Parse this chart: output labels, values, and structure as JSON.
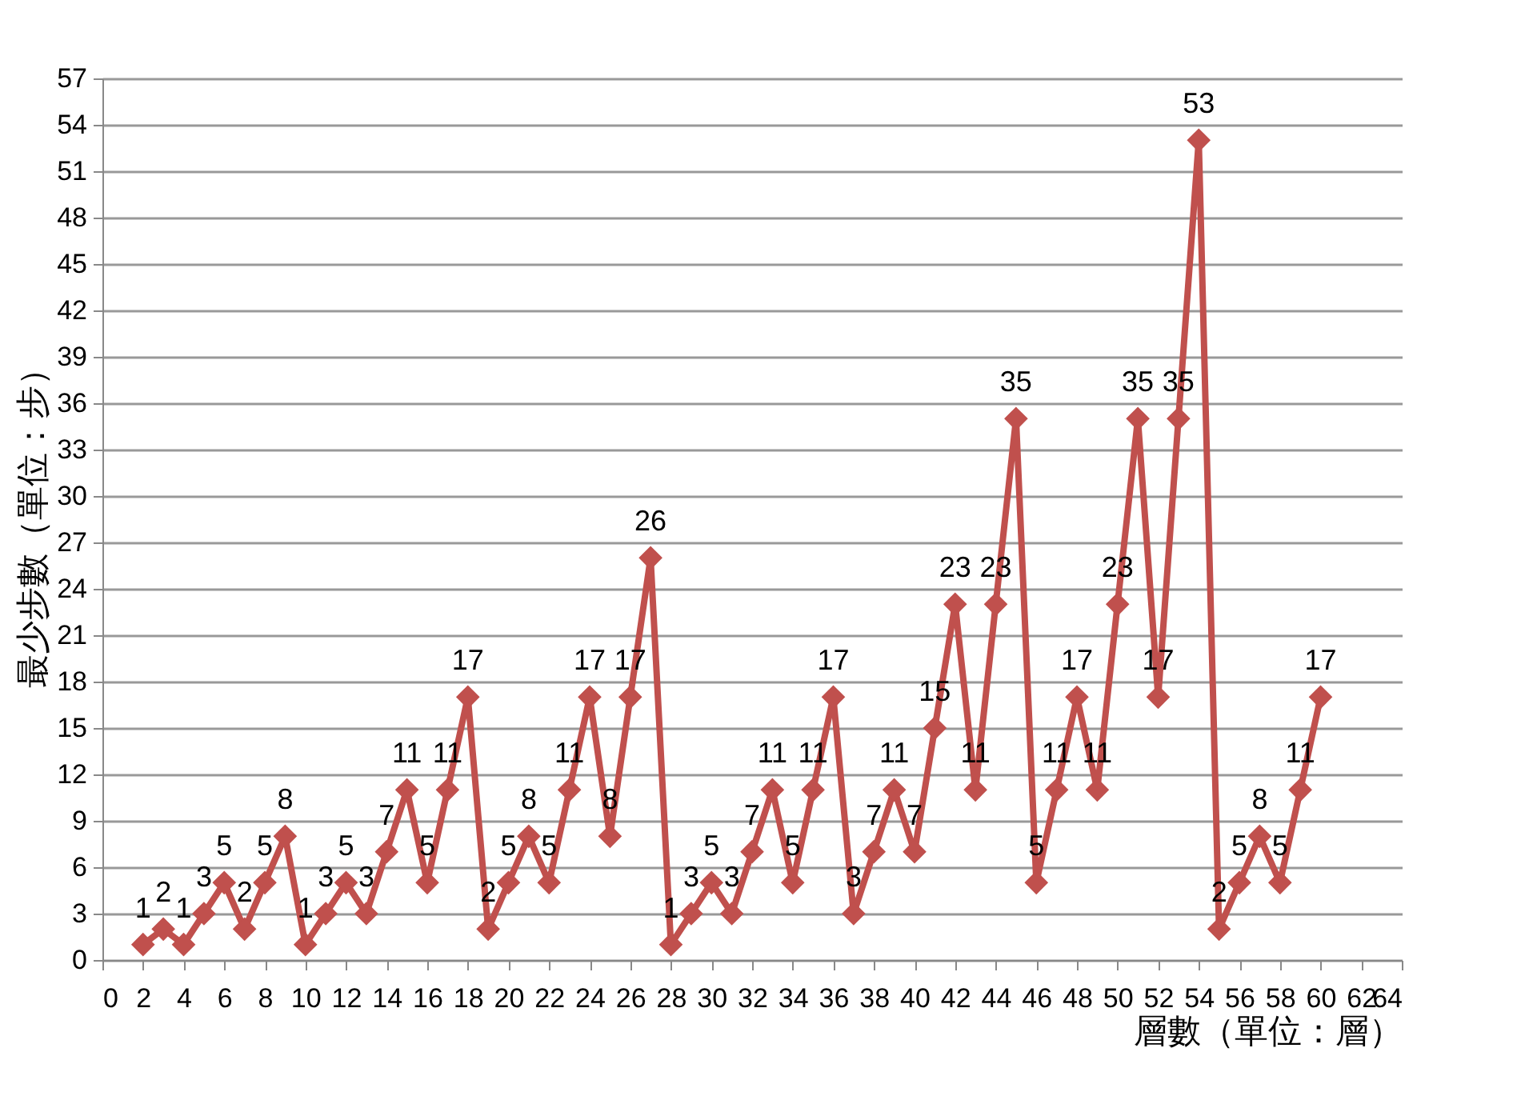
{
  "chart_data": {
    "type": "line",
    "xlabel": "層數（單位：層）",
    "ylabel": "最少步數（單位：步）",
    "x": [
      2,
      3,
      4,
      5,
      6,
      7,
      8,
      9,
      10,
      11,
      12,
      13,
      14,
      15,
      16,
      17,
      18,
      19,
      20,
      21,
      22,
      23,
      24,
      25,
      26,
      27,
      28,
      29,
      30,
      31,
      32,
      33,
      34,
      35,
      36,
      37,
      38,
      39,
      40,
      41,
      42,
      43,
      44,
      45,
      46,
      47,
      48,
      49,
      50,
      51,
      52,
      53,
      54,
      55,
      56,
      57,
      58,
      59,
      60
    ],
    "series": [
      {
        "color": "#c0504d",
        "values": [
          1,
          2,
          1,
          3,
          5,
          2,
          5,
          8,
          1,
          3,
          5,
          3,
          7,
          11,
          5,
          11,
          17,
          2,
          5,
          8,
          5,
          11,
          17,
          8,
          17,
          26,
          1,
          3,
          5,
          3,
          7,
          11,
          5,
          11,
          17,
          3,
          7,
          11,
          7,
          15,
          23,
          11,
          23,
          35,
          5,
          11,
          17,
          11,
          23,
          35,
          17,
          35,
          53,
          2,
          5,
          8,
          5,
          11,
          17
        ]
      }
    ],
    "xlim": [
      0,
      64
    ],
    "xticks": [
      0,
      2,
      4,
      6,
      8,
      10,
      12,
      14,
      16,
      18,
      20,
      22,
      24,
      26,
      28,
      30,
      32,
      34,
      36,
      38,
      40,
      42,
      44,
      46,
      48,
      50,
      52,
      54,
      56,
      58,
      60,
      62,
      64
    ],
    "ylim": [
      0,
      57
    ],
    "yticks": [
      0,
      3,
      6,
      9,
      12,
      15,
      18,
      21,
      24,
      27,
      30,
      33,
      36,
      39,
      42,
      45,
      48,
      51,
      54,
      57
    ],
    "grid": "y",
    "legend": false,
    "marker": "diamond",
    "line_style": "solid",
    "data_labels": true
  }
}
